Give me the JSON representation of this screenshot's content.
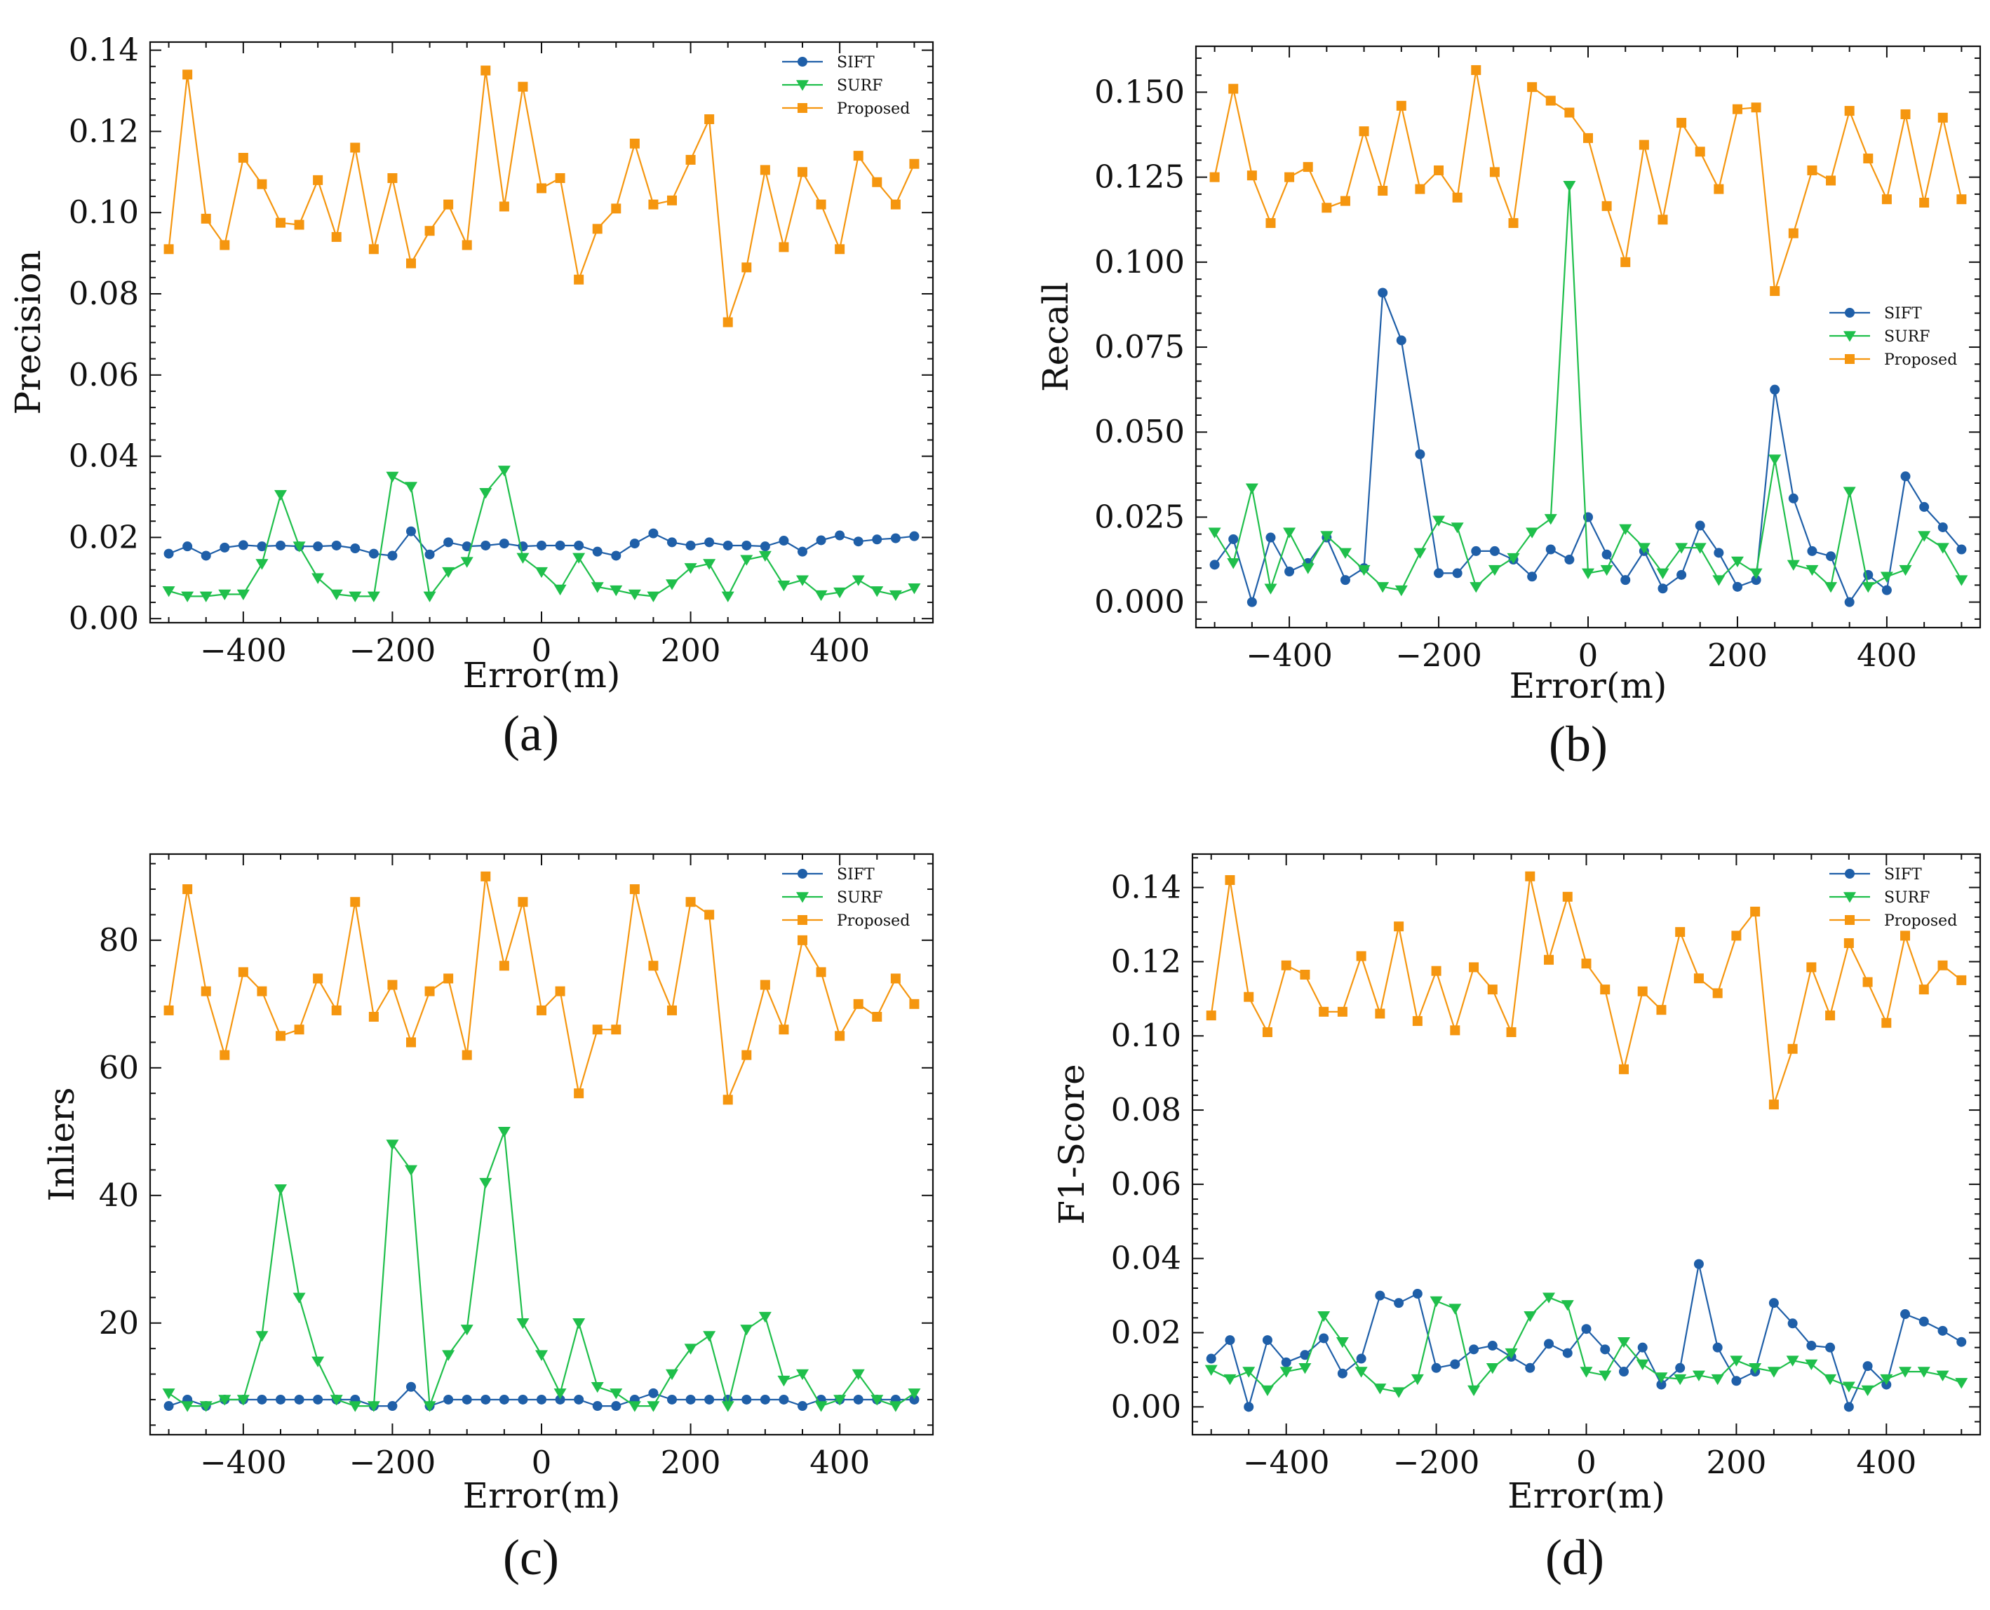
{
  "colors": {
    "SIFT": "#1f5fa8",
    "SURF": "#1fbf4b",
    "Proposed": "#f5960f",
    "axis": "#111111"
  },
  "chart_data": [
    {
      "id": "a",
      "type": "line",
      "caption": "(a)",
      "xlabel": "Error(m)",
      "ylabel": "Precision",
      "xlim": [
        -525,
        525
      ],
      "ylim": [
        -0.001,
        0.142
      ],
      "xticks": [
        -400,
        -200,
        0,
        200,
        400
      ],
      "xtick_labels": [
        "−400",
        "−200",
        "0",
        "200",
        "400"
      ],
      "yticks": [
        0.0,
        0.02,
        0.04,
        0.06,
        0.08,
        0.1,
        0.12,
        0.14
      ],
      "ytick_labels": [
        "0.00",
        "0.02",
        "0.04",
        "0.06",
        "0.08",
        "0.10",
        "0.12",
        "0.14"
      ],
      "legend_position": "top-right",
      "x": [
        -500,
        -475,
        -450,
        -425,
        -400,
        -375,
        -350,
        -325,
        -300,
        -275,
        -250,
        -225,
        -200,
        -175,
        -150,
        -125,
        -100,
        -75,
        -50,
        -25,
        0,
        25,
        50,
        75,
        100,
        125,
        150,
        175,
        200,
        225,
        250,
        275,
        300,
        325,
        350,
        375,
        400,
        425,
        450,
        475,
        500
      ],
      "series": [
        {
          "name": "SIFT",
          "marker": "circle",
          "values": [
            0.016,
            0.0178,
            0.0155,
            0.0175,
            0.0181,
            0.0178,
            0.018,
            0.0178,
            0.0178,
            0.018,
            0.0173,
            0.016,
            0.0155,
            0.0215,
            0.0158,
            0.0188,
            0.0178,
            0.018,
            0.0185,
            0.0178,
            0.018,
            0.018,
            0.018,
            0.0165,
            0.0155,
            0.0185,
            0.021,
            0.0188,
            0.018,
            0.0188,
            0.018,
            0.018,
            0.0178,
            0.0192,
            0.0165,
            0.0193,
            0.0205,
            0.019,
            0.0195,
            0.0198,
            0.0203
          ]
        },
        {
          "name": "SURF",
          "marker": "triangle-down",
          "values": [
            0.0068,
            0.0055,
            0.0055,
            0.006,
            0.006,
            0.0135,
            0.0305,
            0.0178,
            0.01,
            0.006,
            0.0055,
            0.0055,
            0.035,
            0.0325,
            0.0055,
            0.0115,
            0.014,
            0.031,
            0.0365,
            0.015,
            0.0115,
            0.0072,
            0.015,
            0.0078,
            0.007,
            0.006,
            0.0055,
            0.0085,
            0.0125,
            0.0135,
            0.0055,
            0.0145,
            0.0155,
            0.0082,
            0.0095,
            0.0058,
            0.0065,
            0.0095,
            0.0068,
            0.0058,
            0.0075
          ]
        },
        {
          "name": "Proposed",
          "marker": "square",
          "values": [
            0.091,
            0.134,
            0.0985,
            0.092,
            0.1135,
            0.107,
            0.0975,
            0.097,
            0.108,
            0.094,
            0.116,
            0.091,
            0.1085,
            0.0875,
            0.0955,
            0.102,
            0.092,
            0.135,
            0.1015,
            0.131,
            0.106,
            0.1085,
            0.0835,
            0.096,
            0.101,
            0.117,
            0.102,
            0.103,
            0.113,
            0.123,
            0.073,
            0.0865,
            0.1105,
            0.0915,
            0.11,
            0.102,
            0.091,
            0.114,
            0.1075,
            0.102,
            0.112
          ]
        }
      ]
    },
    {
      "id": "b",
      "type": "line",
      "caption": "(b)",
      "xlabel": "Error(m)",
      "ylabel": "Recall",
      "xlim": [
        -525,
        525
      ],
      "ylim": [
        -0.0075,
        0.1635
      ],
      "xticks": [
        -400,
        -200,
        0,
        200,
        400
      ],
      "xtick_labels": [
        "−400",
        "−200",
        "0",
        "200",
        "400"
      ],
      "yticks": [
        0.0,
        0.025,
        0.05,
        0.075,
        0.1,
        0.125,
        0.15
      ],
      "ytick_labels": [
        "0.000",
        "0.025",
        "0.050",
        "0.075",
        "0.100",
        "0.125",
        "0.150"
      ],
      "legend_position": "center-right",
      "x": [
        -500,
        -475,
        -450,
        -425,
        -400,
        -375,
        -350,
        -325,
        -300,
        -275,
        -250,
        -225,
        -200,
        -175,
        -150,
        -125,
        -100,
        -75,
        -50,
        -25,
        0,
        25,
        50,
        75,
        100,
        125,
        150,
        175,
        200,
        225,
        250,
        275,
        300,
        325,
        350,
        375,
        400,
        425,
        450,
        475,
        500
      ],
      "series": [
        {
          "name": "SIFT",
          "marker": "circle",
          "values": [
            0.011,
            0.0185,
            0.0,
            0.019,
            0.009,
            0.0115,
            0.019,
            0.0065,
            0.01,
            0.091,
            0.077,
            0.0435,
            0.0085,
            0.0085,
            0.015,
            0.015,
            0.0125,
            0.0075,
            0.0155,
            0.0125,
            0.025,
            0.014,
            0.0065,
            0.015,
            0.004,
            0.008,
            0.0225,
            0.0145,
            0.0045,
            0.0065,
            0.0625,
            0.0305,
            0.015,
            0.0135,
            0.0,
            0.008,
            0.0035,
            0.037,
            0.028,
            0.022,
            0.0155
          ]
        },
        {
          "name": "SURF",
          "marker": "triangle-down",
          "values": [
            0.0205,
            0.0115,
            0.0335,
            0.004,
            0.0205,
            0.01,
            0.0195,
            0.0145,
            0.0095,
            0.0045,
            0.0035,
            0.0145,
            0.024,
            0.022,
            0.0045,
            0.0095,
            0.013,
            0.0205,
            0.0245,
            0.1225,
            0.0085,
            0.0095,
            0.0215,
            0.016,
            0.0085,
            0.016,
            0.016,
            0.0065,
            0.012,
            0.0085,
            0.042,
            0.011,
            0.0095,
            0.0045,
            0.0325,
            0.0045,
            0.0075,
            0.0095,
            0.0195,
            0.016,
            0.0065
          ]
        },
        {
          "name": "Proposed",
          "marker": "square",
          "values": [
            0.125,
            0.151,
            0.1255,
            0.1115,
            0.125,
            0.128,
            0.116,
            0.118,
            0.1385,
            0.121,
            0.146,
            0.1215,
            0.127,
            0.119,
            0.1565,
            0.1265,
            0.1115,
            0.1515,
            0.1475,
            0.144,
            0.1365,
            0.1165,
            0.1,
            0.1345,
            0.1125,
            0.141,
            0.1325,
            0.1215,
            0.145,
            0.1455,
            0.0915,
            0.1085,
            0.127,
            0.124,
            0.1445,
            0.1305,
            0.1185,
            0.1435,
            0.1175,
            0.1425,
            0.1185
          ]
        }
      ]
    },
    {
      "id": "c",
      "type": "line",
      "caption": "(c)",
      "xlabel": "Error(m)",
      "ylabel": "Inliers",
      "xlim": [
        -525,
        525
      ],
      "ylim": [
        2.5,
        93.5
      ],
      "xticks": [
        -400,
        -200,
        0,
        200,
        400
      ],
      "xtick_labels": [
        "−400",
        "−200",
        "0",
        "200",
        "400"
      ],
      "yticks": [
        20,
        40,
        60,
        80
      ],
      "ytick_labels": [
        "20",
        "40",
        "60",
        "80"
      ],
      "legend_position": "top-right",
      "x": [
        -500,
        -475,
        -450,
        -425,
        -400,
        -375,
        -350,
        -325,
        -300,
        -275,
        -250,
        -225,
        -200,
        -175,
        -150,
        -125,
        -100,
        -75,
        -50,
        -25,
        0,
        25,
        50,
        75,
        100,
        125,
        150,
        175,
        200,
        225,
        250,
        275,
        300,
        325,
        350,
        375,
        400,
        425,
        450,
        475,
        500
      ],
      "series": [
        {
          "name": "SIFT",
          "marker": "circle",
          "values": [
            7,
            8,
            7,
            8,
            8,
            8,
            8,
            8,
            8,
            8,
            8,
            7,
            7,
            10,
            7,
            8,
            8,
            8,
            8,
            8,
            8,
            8,
            8,
            7,
            7,
            8,
            9,
            8,
            8,
            8,
            8,
            8,
            8,
            8,
            7,
            8,
            8,
            8,
            8,
            8,
            8
          ]
        },
        {
          "name": "SURF",
          "marker": "triangle-down",
          "values": [
            9,
            7,
            7,
            8,
            8,
            18,
            41,
            24,
            14,
            8,
            7,
            7,
            48,
            44,
            7,
            15,
            19,
            42,
            50,
            20,
            15,
            9,
            20,
            10,
            9,
            7,
            7,
            12,
            16,
            18,
            7,
            19,
            21,
            11,
            12,
            7,
            8,
            12,
            8,
            7,
            9
          ]
        },
        {
          "name": "Proposed",
          "marker": "square",
          "values": [
            69,
            88,
            72,
            62,
            75,
            72,
            65,
            66,
            74,
            69,
            86,
            68,
            73,
            64,
            72,
            74,
            62,
            90,
            76,
            86,
            69,
            72,
            56,
            66,
            66,
            88,
            76,
            69,
            86,
            84,
            55,
            62,
            73,
            66,
            80,
            75,
            65,
            70,
            68,
            74,
            70
          ]
        }
      ]
    },
    {
      "id": "d",
      "type": "line",
      "caption": "(d)",
      "xlabel": "Error(m)",
      "ylabel": "F1-Score",
      "xlim": [
        -525,
        525
      ],
      "ylim": [
        -0.0075,
        0.149
      ],
      "xticks": [
        -400,
        -200,
        0,
        200,
        400
      ],
      "xtick_labels": [
        "−400",
        "−200",
        "0",
        "200",
        "400"
      ],
      "yticks": [
        0.0,
        0.02,
        0.04,
        0.06,
        0.08,
        0.1,
        0.12,
        0.14
      ],
      "ytick_labels": [
        "0.00",
        "0.02",
        "0.04",
        "0.06",
        "0.08",
        "0.10",
        "0.12",
        "0.14"
      ],
      "legend_position": "top-right",
      "x": [
        -500,
        -475,
        -450,
        -425,
        -400,
        -375,
        -350,
        -325,
        -300,
        -275,
        -250,
        -225,
        -200,
        -175,
        -150,
        -125,
        -100,
        -75,
        -50,
        -25,
        0,
        25,
        50,
        75,
        100,
        125,
        150,
        175,
        200,
        225,
        250,
        275,
        300,
        325,
        350,
        375,
        400,
        425,
        450,
        475,
        500
      ],
      "series": [
        {
          "name": "SIFT",
          "marker": "circle",
          "values": [
            0.013,
            0.018,
            0.0,
            0.018,
            0.012,
            0.014,
            0.0185,
            0.009,
            0.013,
            0.03,
            0.028,
            0.0305,
            0.0105,
            0.0115,
            0.0155,
            0.0165,
            0.0135,
            0.0105,
            0.017,
            0.0145,
            0.021,
            0.0155,
            0.0095,
            0.016,
            0.006,
            0.0105,
            0.0385,
            0.016,
            0.007,
            0.0095,
            0.028,
            0.0225,
            0.0165,
            0.016,
            0.0,
            0.011,
            0.006,
            0.025,
            0.023,
            0.0205,
            0.0175
          ]
        },
        {
          "name": "SURF",
          "marker": "triangle-down",
          "values": [
            0.01,
            0.0075,
            0.0095,
            0.0045,
            0.0095,
            0.0105,
            0.0245,
            0.0175,
            0.0095,
            0.005,
            0.004,
            0.0075,
            0.0285,
            0.0265,
            0.0045,
            0.0105,
            0.0145,
            0.0245,
            0.0295,
            0.0275,
            0.0095,
            0.0085,
            0.0175,
            0.0115,
            0.008,
            0.0075,
            0.0085,
            0.0075,
            0.0125,
            0.0105,
            0.0095,
            0.0125,
            0.0115,
            0.0075,
            0.0055,
            0.0045,
            0.0075,
            0.0095,
            0.0095,
            0.0085,
            0.0065
          ]
        },
        {
          "name": "Proposed",
          "marker": "square",
          "values": [
            0.1055,
            0.142,
            0.1105,
            0.101,
            0.119,
            0.1165,
            0.1065,
            0.1065,
            0.1215,
            0.106,
            0.1295,
            0.104,
            0.1175,
            0.1015,
            0.1185,
            0.1125,
            0.101,
            0.143,
            0.1205,
            0.1375,
            0.1195,
            0.1125,
            0.091,
            0.112,
            0.107,
            0.128,
            0.1155,
            0.1115,
            0.127,
            0.1335,
            0.0815,
            0.0965,
            0.1185,
            0.1055,
            0.125,
            0.1145,
            0.1035,
            0.127,
            0.1125,
            0.119,
            0.115
          ]
        }
      ]
    }
  ]
}
